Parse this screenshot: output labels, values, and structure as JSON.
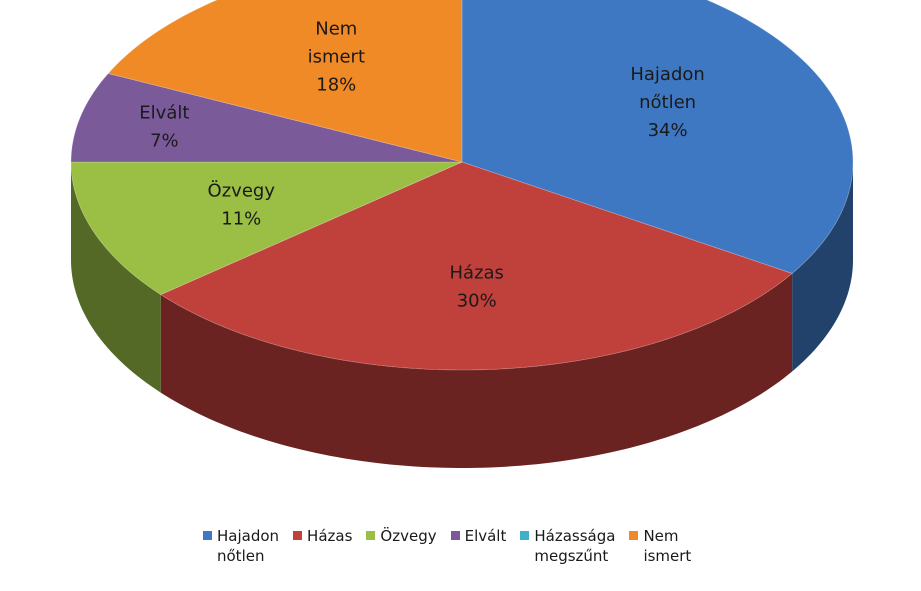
{
  "chart_data": {
    "type": "pie",
    "style": "3d",
    "title": "",
    "legend_position": "bottom",
    "slices": [
      {
        "key": "hajadon",
        "label_lines": [
          "Hajadon",
          "nőtlen"
        ],
        "value": 34,
        "value_label": "34%",
        "color": "#3f78c2"
      },
      {
        "key": "hazas",
        "label_lines": [
          "Házas"
        ],
        "value": 30,
        "value_label": "30%",
        "color": "#c0403c"
      },
      {
        "key": "ozvegy",
        "label_lines": [
          "Özvegy"
        ],
        "value": 11,
        "value_label": "11%",
        "color": "#9bbf45"
      },
      {
        "key": "elvalt",
        "label_lines": [
          "Elvált"
        ],
        "value": 7,
        "value_label": "7%",
        "color": "#7b5a9a"
      },
      {
        "key": "hazassaga",
        "label_lines": [
          "Házassága",
          "megszűnt"
        ],
        "value": 0,
        "value_label": "",
        "color": "#3fb0c8"
      },
      {
        "key": "nem-ismert",
        "label_lines": [
          "Nem",
          "ismert"
        ],
        "value": 18,
        "value_label": "18%",
        "color": "#f08a26"
      }
    ]
  },
  "legend": {
    "items": [
      {
        "lines": [
          "Hajadon",
          "nőtlen"
        ],
        "color": "#3f78c2"
      },
      {
        "lines": [
          "Házas"
        ],
        "color": "#c0403c"
      },
      {
        "lines": [
          "Özvegy"
        ],
        "color": "#9bbf45"
      },
      {
        "lines": [
          "Elvált"
        ],
        "color": "#7b5a9a"
      },
      {
        "lines": [
          "Házassága",
          "megszűnt"
        ],
        "color": "#3fb0c8"
      },
      {
        "lines": [
          "Nem",
          "ismert"
        ],
        "color": "#f08a26"
      }
    ]
  }
}
